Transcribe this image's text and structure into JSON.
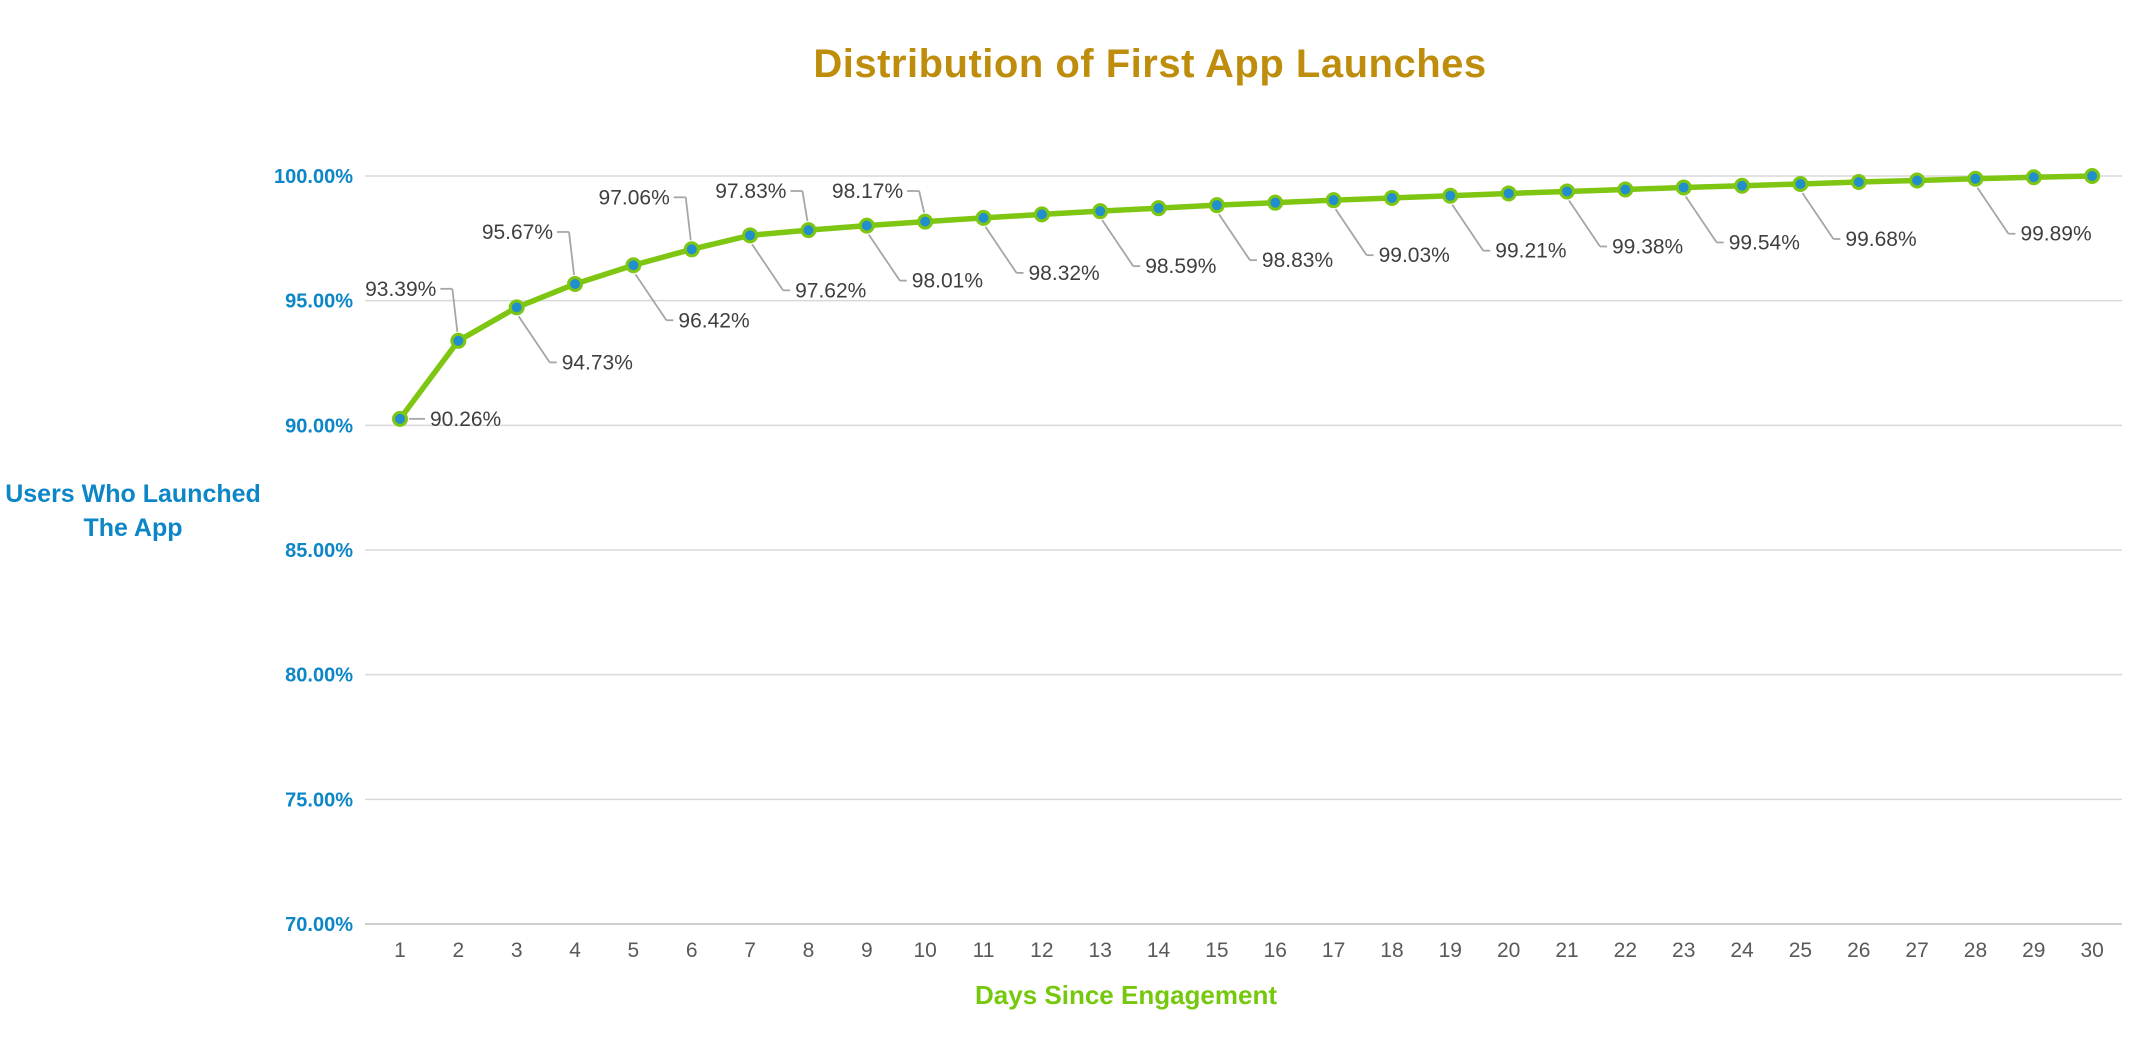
{
  "title": "Distribution of First App Launches",
  "colors": {
    "title_gold": "#BE8D0B",
    "axis_blue": "#0C86C7",
    "axis_green": "#76C80D",
    "line_green": "#7EC611",
    "marker_blue": "#208FCB",
    "gridline_gray": "#D9D9D9",
    "axisline_gray": "#CFCFCF",
    "tick_gray": "#595959",
    "data_label_gray": "#3F3F3F",
    "leader_gray": "#A6A6A6"
  },
  "chart_data": {
    "type": "line",
    "title": "Distribution of First App Launches",
    "xlabel": "Days Since Engagement",
    "ylabel": "Users Who Launched The App",
    "x": [
      1,
      2,
      3,
      4,
      5,
      6,
      7,
      8,
      9,
      10,
      11,
      12,
      13,
      14,
      15,
      16,
      17,
      18,
      19,
      20,
      21,
      22,
      23,
      24,
      25,
      26,
      27,
      28,
      29,
      30
    ],
    "series": [
      {
        "name": "Users Who Launched The App",
        "values": [
          90.26,
          93.39,
          94.73,
          95.67,
          96.42,
          97.06,
          97.62,
          97.83,
          98.01,
          98.17,
          98.32,
          98.46,
          98.59,
          98.71,
          98.83,
          98.93,
          99.03,
          99.12,
          99.21,
          99.3,
          99.38,
          99.46,
          99.54,
          99.61,
          99.68,
          99.76,
          99.82,
          99.89,
          99.95,
          100.0
        ]
      }
    ],
    "ylim": [
      70,
      100
    ],
    "ytick_values": [
      100,
      95,
      90,
      85,
      80,
      75,
      70
    ],
    "ytick_labels": [
      "100.00%",
      "95.00%",
      "90.00%",
      "85.00%",
      "80.00%",
      "75.00%",
      "70.00%"
    ],
    "xtick_labels": [
      "1",
      "2",
      "3",
      "4",
      "5",
      "6",
      "7",
      "8",
      "9",
      "10",
      "11",
      "12",
      "13",
      "14",
      "15",
      "16",
      "17",
      "18",
      "19",
      "20",
      "21",
      "22",
      "23",
      "24",
      "25",
      "26",
      "27",
      "28",
      "29",
      "30"
    ],
    "grid": true,
    "legend": "none",
    "annotations": [
      {
        "day": 1,
        "text": "90.26%",
        "side": "right"
      },
      {
        "day": 2,
        "text": "93.39%",
        "side": "above"
      },
      {
        "day": 3,
        "text": "94.73%",
        "side": "below"
      },
      {
        "day": 4,
        "text": "95.67%",
        "side": "above"
      },
      {
        "day": 5,
        "text": "96.42%",
        "side": "below"
      },
      {
        "day": 6,
        "text": "97.06%",
        "side": "above"
      },
      {
        "day": 7,
        "text": "97.62%",
        "side": "below"
      },
      {
        "day": 8,
        "text": "97.83%",
        "side": "above"
      },
      {
        "day": 9,
        "text": "98.01%",
        "side": "below"
      },
      {
        "day": 10,
        "text": "98.17%",
        "side": "above"
      },
      {
        "day": 11,
        "text": "98.32%",
        "side": "below"
      },
      {
        "day": 13,
        "text": "98.59%",
        "side": "below"
      },
      {
        "day": 15,
        "text": "98.83%",
        "side": "below"
      },
      {
        "day": 17,
        "text": "99.03%",
        "side": "below"
      },
      {
        "day": 19,
        "text": "99.21%",
        "side": "below"
      },
      {
        "day": 21,
        "text": "99.38%",
        "side": "below"
      },
      {
        "day": 23,
        "text": "99.54%",
        "side": "below"
      },
      {
        "day": 25,
        "text": "99.68%",
        "side": "below"
      },
      {
        "day": 28,
        "text": "99.89%",
        "side": "below"
      }
    ]
  }
}
